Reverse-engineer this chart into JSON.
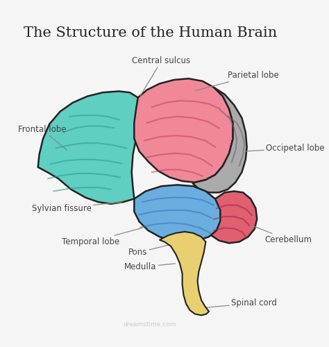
{
  "title": "The Structure of the Human Brain",
  "title_fontsize": 15,
  "bg_color": "#f5f5f5",
  "regions": {
    "frontal_lobe": {
      "color": "#5ecfc0",
      "label": "Frontal lobe"
    },
    "parietal_lobe": {
      "color": "#f08898",
      "label": "Parietal lobe"
    },
    "temporal_lobe": {
      "color": "#6aaee0",
      "label": "Temporal lobe"
    },
    "occipital_lobe": {
      "color": "#aaaaaa",
      "label": "Occipetal lobe"
    },
    "cerebellum": {
      "color": "#e06070",
      "label": "Cerebellum"
    },
    "brainstem": {
      "color": "#e8d070",
      "label": "Pons"
    },
    "medulla": {
      "color": "#e8d070",
      "label": "Medulla"
    },
    "spinal_cord": {
      "color": "#e8d070",
      "label": "Spinal cord"
    }
  },
  "annotation_fontsize": 8.5,
  "label_color": "#444444",
  "arrow_color": "#888888"
}
